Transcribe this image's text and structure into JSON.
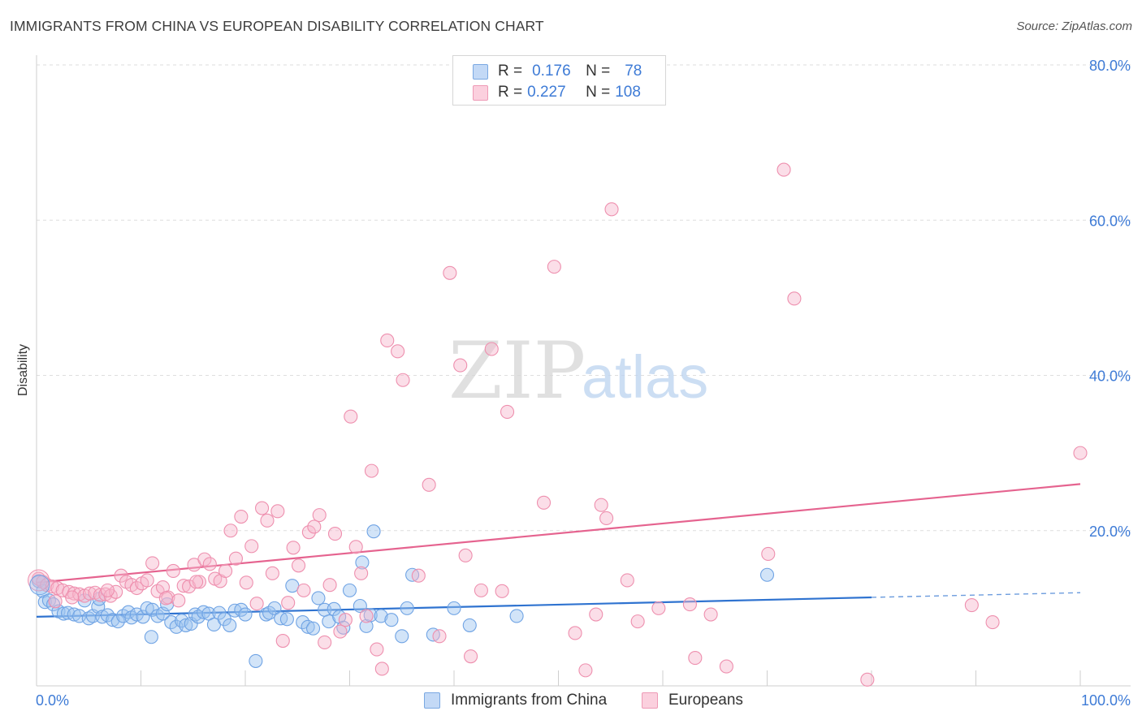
{
  "title": "IMMIGRANTS FROM CHINA VS EUROPEAN DISABILITY CORRELATION CHART",
  "source": "Source: ZipAtlas.com",
  "watermark": {
    "zip": "ZIP",
    "atlas": "atlas"
  },
  "colors": {
    "blue_fill": "#9cc3f0",
    "blue_stroke": "#6fa3e4",
    "blue_line": "#2f73d0",
    "pink_fill": "#f6b6cb",
    "pink_stroke": "#ee8fae",
    "pink_line": "#e5638f",
    "grid": "#dedede",
    "tick_text": "#3e7bd6"
  },
  "legend": {
    "r_label": "R =",
    "n_label": "N =",
    "rows": [
      {
        "r": "0.176",
        "n": "78",
        "swatch": "blue"
      },
      {
        "r": "0.227",
        "n": "108",
        "swatch": "pink"
      }
    ]
  },
  "bottom_legend": [
    {
      "label": "Immigrants from China",
      "swatch": "blue"
    },
    {
      "label": "Europeans",
      "swatch": "pink"
    }
  ],
  "chart_data": {
    "type": "scatter",
    "title": "IMMIGRANTS FROM CHINA VS EUROPEAN DISABILITY CORRELATION CHART",
    "xlabel": "",
    "ylabel": "Disability",
    "xlim": [
      0,
      100
    ],
    "ylim": [
      0,
      80
    ],
    "x_tick_labels": [
      "0.0%",
      "100.0%"
    ],
    "y_tick_labels": [
      "20.0%",
      "40.0%",
      "60.0%",
      "80.0%"
    ],
    "y_ticks": [
      20,
      40,
      60,
      80
    ],
    "grid": true,
    "legend_position": "top-center",
    "series": [
      {
        "name": "Immigrants from China",
        "color": "blue",
        "trend": {
          "x0": 0,
          "y0": 8.9,
          "x1": 80,
          "y1": 11.4,
          "dash_to_x": 100,
          "dash_to_y": 12.0
        },
        "points": [
          [
            0.2,
            13.5
          ],
          [
            0.6,
            12.2
          ],
          [
            0.8,
            10.8
          ],
          [
            1.2,
            11.0
          ],
          [
            1.6,
            10.5
          ],
          [
            2.1,
            9.6
          ],
          [
            2.6,
            9.3
          ],
          [
            3.0,
            9.4
          ],
          [
            3.6,
            9.2
          ],
          [
            4.1,
            9.0
          ],
          [
            4.6,
            11.0
          ],
          [
            5.0,
            8.7
          ],
          [
            5.4,
            9.0
          ],
          [
            5.9,
            10.2
          ],
          [
            6.3,
            8.9
          ],
          [
            6.8,
            9.1
          ],
          [
            7.3,
            8.5
          ],
          [
            7.8,
            8.3
          ],
          [
            8.3,
            9.0
          ],
          [
            8.8,
            9.5
          ],
          [
            9.1,
            8.8
          ],
          [
            9.6,
            9.2
          ],
          [
            10.2,
            8.9
          ],
          [
            10.6,
            10.0
          ],
          [
            11.1,
            9.8
          ],
          [
            11.6,
            9.0
          ],
          [
            12.1,
            9.3
          ],
          [
            12.5,
            10.5
          ],
          [
            12.9,
            8.2
          ],
          [
            13.4,
            7.6
          ],
          [
            13.9,
            8.4
          ],
          [
            14.3,
            7.8
          ],
          [
            14.8,
            8.0
          ],
          [
            15.2,
            9.2
          ],
          [
            15.5,
            8.9
          ],
          [
            16.0,
            9.5
          ],
          [
            16.5,
            9.3
          ],
          [
            17.0,
            7.9
          ],
          [
            17.5,
            9.4
          ],
          [
            18.0,
            8.6
          ],
          [
            18.5,
            7.8
          ],
          [
            19.0,
            9.7
          ],
          [
            19.6,
            9.8
          ],
          [
            20.0,
            9.2
          ],
          [
            21.0,
            3.2
          ],
          [
            22.0,
            9.2
          ],
          [
            22.3,
            9.4
          ],
          [
            22.8,
            10.0
          ],
          [
            23.4,
            8.7
          ],
          [
            24.0,
            8.6
          ],
          [
            24.5,
            12.9
          ],
          [
            25.5,
            8.2
          ],
          [
            26.0,
            7.6
          ],
          [
            26.5,
            7.4
          ],
          [
            27.0,
            11.3
          ],
          [
            27.6,
            9.8
          ],
          [
            28.0,
            8.3
          ],
          [
            28.5,
            9.9
          ],
          [
            29.0,
            8.9
          ],
          [
            29.4,
            7.5
          ],
          [
            30.0,
            12.3
          ],
          [
            31.0,
            10.3
          ],
          [
            31.2,
            15.9
          ],
          [
            31.6,
            7.7
          ],
          [
            32.0,
            9.1
          ],
          [
            32.3,
            19.9
          ],
          [
            33.0,
            9.0
          ],
          [
            34.0,
            8.5
          ],
          [
            35.0,
            6.4
          ],
          [
            35.5,
            10.0
          ],
          [
            36.0,
            14.3
          ],
          [
            38.0,
            6.6
          ],
          [
            40.0,
            10.0
          ],
          [
            41.5,
            7.8
          ],
          [
            6.0,
            11.2
          ],
          [
            11.0,
            6.3
          ],
          [
            46.0,
            9.0
          ],
          [
            70.0,
            14.3
          ]
        ]
      },
      {
        "name": "Europeans",
        "color": "pink",
        "trend": {
          "x0": 0,
          "y0": 13.3,
          "x1": 100,
          "y1": 26.0
        },
        "points": [
          [
            0.2,
            13.8
          ],
          [
            0.6,
            13.4
          ],
          [
            1.0,
            13.0
          ],
          [
            1.5,
            12.8
          ],
          [
            2.0,
            12.6
          ],
          [
            2.5,
            12.3
          ],
          [
            3.1,
            12.1
          ],
          [
            3.6,
            11.9
          ],
          [
            4.1,
            11.8
          ],
          [
            4.6,
            11.6
          ],
          [
            5.1,
            11.9
          ],
          [
            5.6,
            12.0
          ],
          [
            6.1,
            11.7
          ],
          [
            6.6,
            11.8
          ],
          [
            7.1,
            11.6
          ],
          [
            7.6,
            12.1
          ],
          [
            8.1,
            14.2
          ],
          [
            8.6,
            13.4
          ],
          [
            9.1,
            13.0
          ],
          [
            9.6,
            12.6
          ],
          [
            10.1,
            13.2
          ],
          [
            10.6,
            13.6
          ],
          [
            11.1,
            15.8
          ],
          [
            11.6,
            12.2
          ],
          [
            12.1,
            12.7
          ],
          [
            12.6,
            11.4
          ],
          [
            13.1,
            14.8
          ],
          [
            13.6,
            11.0
          ],
          [
            14.1,
            12.9
          ],
          [
            14.6,
            12.8
          ],
          [
            15.1,
            15.6
          ],
          [
            15.6,
            13.4
          ],
          [
            16.1,
            16.3
          ],
          [
            16.6,
            15.7
          ],
          [
            17.1,
            13.8
          ],
          [
            17.6,
            13.5
          ],
          [
            18.1,
            14.8
          ],
          [
            18.6,
            20.0
          ],
          [
            19.1,
            16.4
          ],
          [
            19.6,
            21.8
          ],
          [
            20.1,
            13.3
          ],
          [
            20.6,
            18.0
          ],
          [
            21.1,
            10.6
          ],
          [
            21.6,
            22.9
          ],
          [
            22.1,
            21.3
          ],
          [
            22.6,
            14.5
          ],
          [
            23.1,
            22.5
          ],
          [
            23.6,
            5.8
          ],
          [
            24.1,
            10.7
          ],
          [
            24.6,
            17.8
          ],
          [
            25.1,
            15.5
          ],
          [
            25.6,
            12.3
          ],
          [
            26.1,
            19.8
          ],
          [
            26.6,
            20.5
          ],
          [
            27.1,
            22.0
          ],
          [
            27.6,
            5.6
          ],
          [
            28.1,
            13.0
          ],
          [
            28.6,
            19.6
          ],
          [
            29.1,
            7.0
          ],
          [
            29.6,
            8.5
          ],
          [
            30.1,
            34.7
          ],
          [
            30.6,
            17.9
          ],
          [
            31.1,
            14.5
          ],
          [
            31.6,
            9.0
          ],
          [
            32.1,
            27.7
          ],
          [
            32.6,
            4.7
          ],
          [
            33.1,
            2.2
          ],
          [
            33.6,
            44.5
          ],
          [
            34.6,
            43.1
          ],
          [
            35.1,
            39.4
          ],
          [
            36.6,
            14.2
          ],
          [
            37.6,
            25.9
          ],
          [
            38.6,
            6.4
          ],
          [
            39.6,
            53.2
          ],
          [
            40.6,
            41.3
          ],
          [
            41.1,
            16.8
          ],
          [
            41.6,
            3.8
          ],
          [
            42.6,
            12.3
          ],
          [
            43.6,
            43.4
          ],
          [
            44.6,
            12.2
          ],
          [
            45.1,
            35.3
          ],
          [
            48.6,
            23.6
          ],
          [
            49.6,
            54.0
          ],
          [
            51.6,
            6.8
          ],
          [
            52.6,
            2.0
          ],
          [
            53.6,
            9.2
          ],
          [
            54.1,
            23.3
          ],
          [
            54.6,
            21.6
          ],
          [
            55.1,
            61.4
          ],
          [
            56.6,
            13.6
          ],
          [
            57.6,
            8.3
          ],
          [
            59.6,
            10.0
          ],
          [
            62.6,
            10.5
          ],
          [
            63.1,
            3.6
          ],
          [
            64.6,
            9.2
          ],
          [
            66.1,
            2.5
          ],
          [
            70.1,
            17.0
          ],
          [
            71.6,
            66.5
          ],
          [
            72.6,
            49.9
          ],
          [
            79.6,
            0.8
          ],
          [
            89.6,
            10.4
          ],
          [
            91.6,
            8.2
          ],
          [
            100.0,
            30.0
          ],
          [
            1.8,
            10.9
          ],
          [
            3.4,
            11.4
          ],
          [
            6.8,
            12.3
          ],
          [
            12.4,
            11.3
          ],
          [
            15.3,
            13.4
          ]
        ]
      }
    ]
  }
}
